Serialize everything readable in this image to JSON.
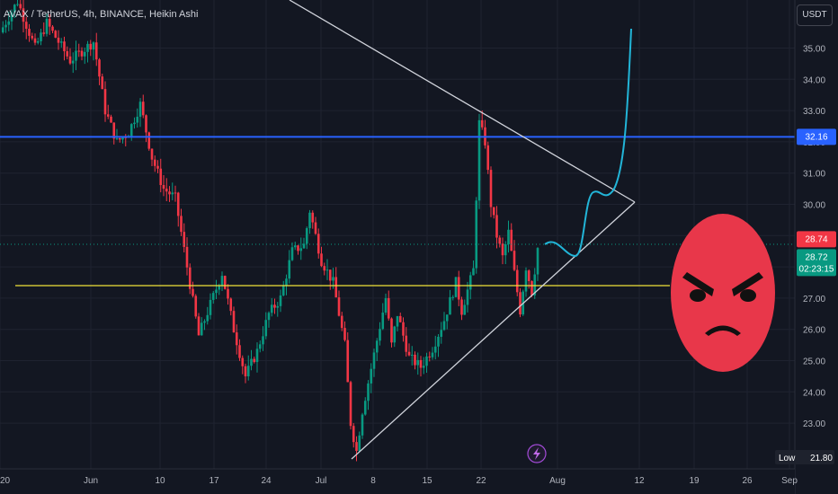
{
  "title": "AVAX / TetherUS, 4h, BINANCE, Heikin Ashi",
  "currency_label": "USDT",
  "colors": {
    "background": "#131722",
    "up_candle": "#089981",
    "down_candle": "#f23645",
    "resistance_line": "#2962ff",
    "support_line": "#f0e33a",
    "trendline": "#d1d4dc",
    "projection": "#22b5d8",
    "emoji_face": "#e8374a"
  },
  "icons": [
    "lightning-icon",
    "angry-face-icon"
  ],
  "chart_data": {
    "type": "candlestick",
    "ylim": [
      22.0,
      36.0
    ],
    "y_ticks": [
      35.0,
      34.0,
      33.0,
      32.0,
      31.0,
      30.0,
      29.0,
      28.0,
      27.0,
      26.0,
      25.0,
      24.0,
      23.0
    ],
    "y_tick_labels": [
      "35.00",
      "34.00",
      "33.00",
      "32.00",
      "31.00",
      "30.00",
      "29.00",
      "28.00",
      "27.00",
      "26.00",
      "25.00",
      "24.00",
      "23.00"
    ],
    "x_tick_labels": [
      "20",
      "Jun",
      "10",
      "17",
      "24",
      "Jul",
      "8",
      "15",
      "22",
      "Aug",
      "12",
      "19",
      "26",
      "Sep"
    ],
    "price_path": [
      [
        0,
        35.5
      ],
      [
        3,
        36.5
      ],
      [
        6,
        35.0
      ],
      [
        8,
        35.8
      ],
      [
        12,
        34.6
      ],
      [
        16,
        35.2
      ],
      [
        18,
        33.0
      ],
      [
        20,
        32.0
      ],
      [
        22,
        32.3
      ],
      [
        24,
        33.2
      ],
      [
        26,
        31.5
      ],
      [
        28,
        30.5
      ],
      [
        30,
        30.2
      ],
      [
        32,
        28.0
      ],
      [
        34,
        25.8
      ],
      [
        36,
        26.8
      ],
      [
        38,
        27.8
      ],
      [
        40,
        26.0
      ],
      [
        42,
        24.5
      ],
      [
        44,
        25.3
      ],
      [
        46,
        26.5
      ],
      [
        48,
        27.0
      ],
      [
        50,
        28.5
      ],
      [
        52,
        28.7
      ],
      [
        53,
        29.8
      ],
      [
        55,
        28.2
      ],
      [
        57,
        27.5
      ],
      [
        59,
        25.5
      ],
      [
        60,
        23.0
      ],
      [
        61,
        22.1
      ],
      [
        62,
        23.4
      ],
      [
        64,
        25.2
      ],
      [
        66,
        27.0
      ],
      [
        67,
        25.5
      ],
      [
        68,
        26.5
      ],
      [
        70,
        25.1
      ],
      [
        72,
        24.8
      ],
      [
        74,
        25.4
      ],
      [
        76,
        26.3
      ],
      [
        78,
        27.5
      ],
      [
        79,
        26.6
      ],
      [
        81,
        27.9
      ],
      [
        82,
        32.6
      ],
      [
        83,
        32.0
      ],
      [
        84,
        30.0
      ],
      [
        85,
        29.0
      ],
      [
        86,
        28.3
      ],
      [
        87,
        29.1
      ],
      [
        88,
        27.8
      ],
      [
        89,
        26.6
      ],
      [
        90,
        28.0
      ],
      [
        91,
        27.2
      ],
      [
        92,
        28.6
      ]
    ],
    "resistance": 32.16,
    "support": 27.4,
    "badges": {
      "resistance": "32.16",
      "red_price": "28.74",
      "last_price": "28.72",
      "countdown": "02:23:15",
      "low_label": "Low",
      "low_value": "21.80"
    }
  }
}
